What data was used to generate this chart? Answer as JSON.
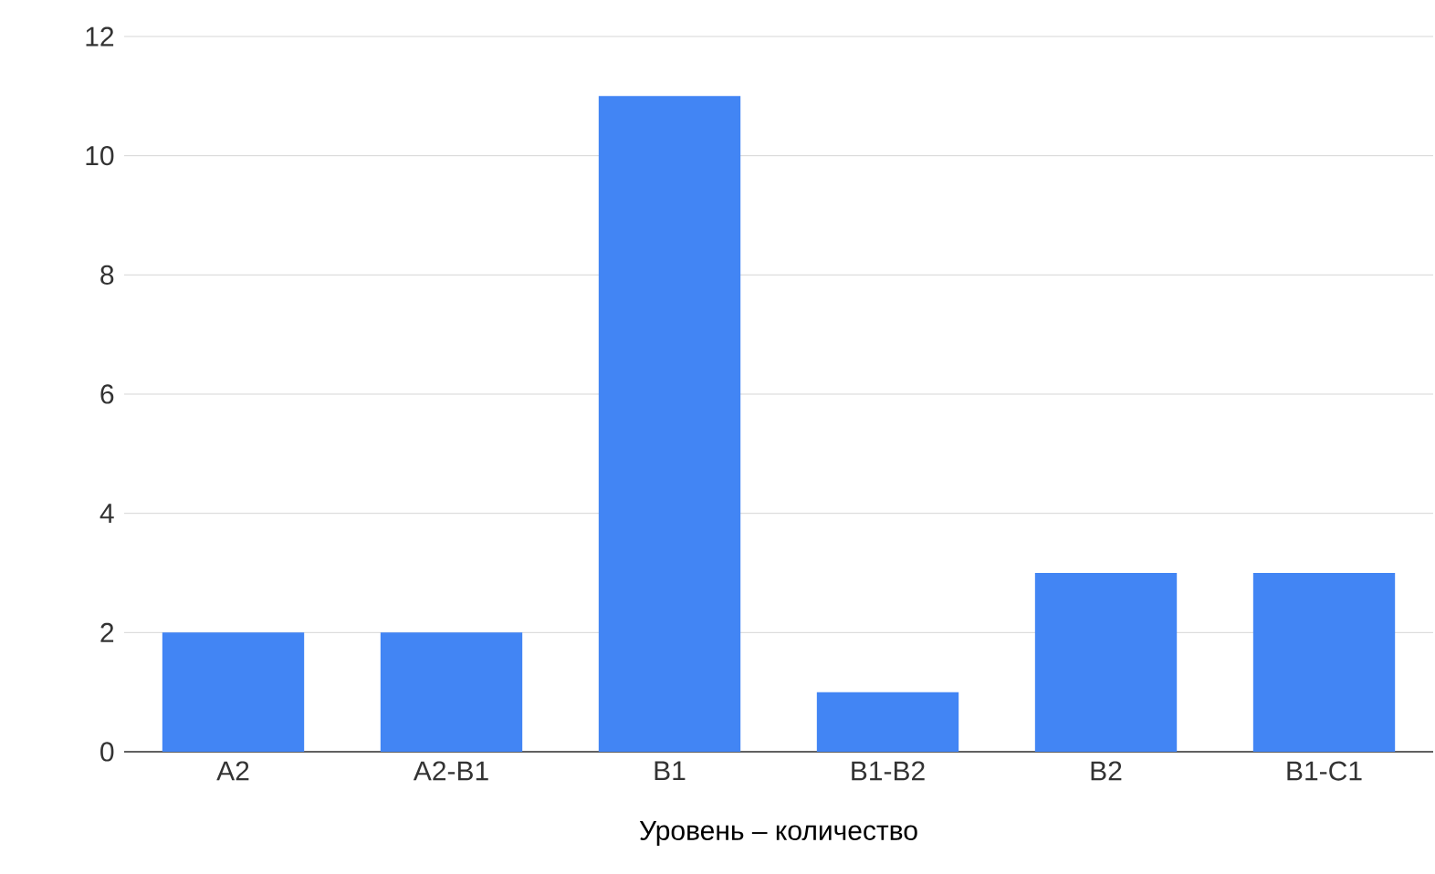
{
  "chart_data": {
    "type": "bar",
    "xlabel": "Уровень – количество",
    "categories": [
      "A2",
      "A2-B1",
      "B1",
      "B1-B2",
      "B2",
      "B1-C1"
    ],
    "values": [
      2,
      2,
      11,
      1,
      3,
      3
    ],
    "color": "#4285f4",
    "ylim": [
      0,
      12
    ],
    "yticks": [
      0,
      2,
      4,
      6,
      8,
      10,
      12
    ],
    "grid": "y"
  }
}
